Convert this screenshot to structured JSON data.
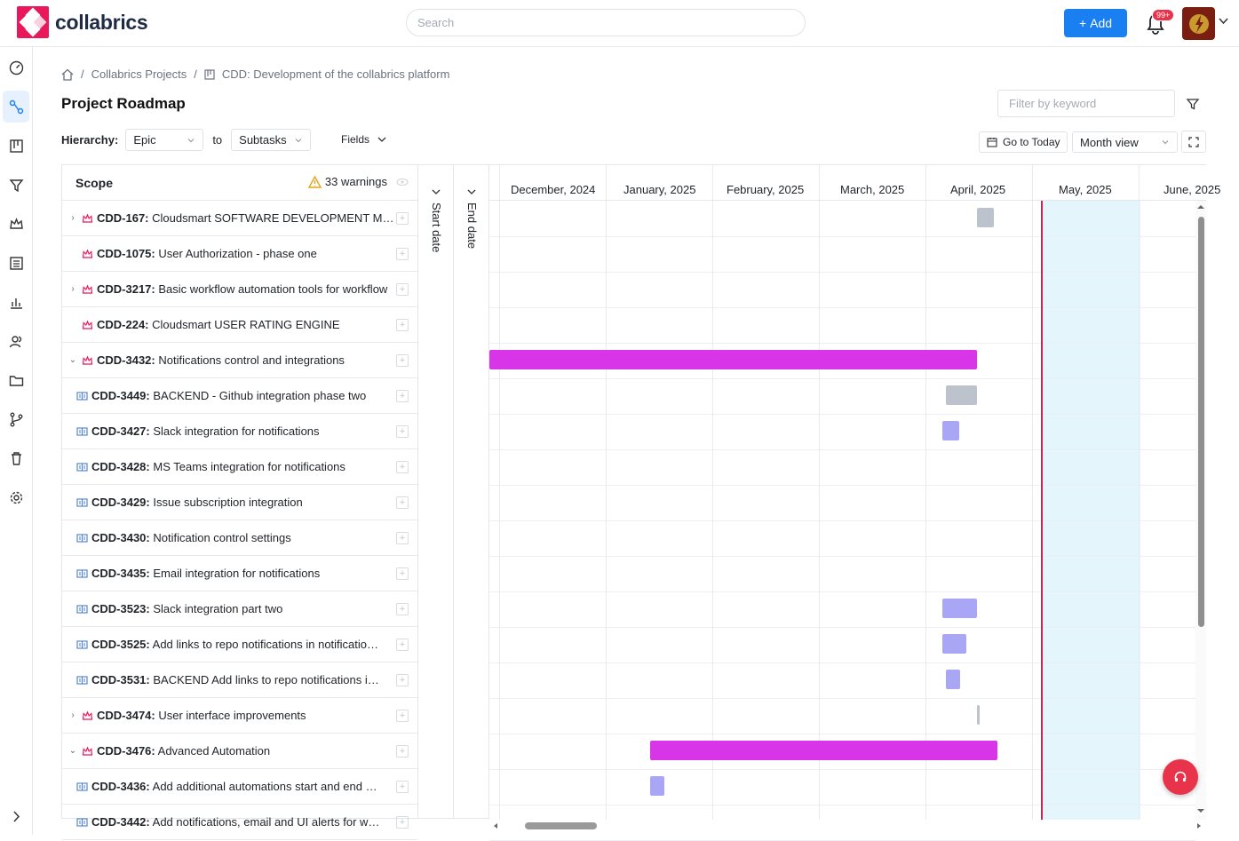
{
  "app": {
    "name": "collabrics"
  },
  "header": {
    "search_placeholder": "Search",
    "add_label": "Add",
    "notification_badge": "99+"
  },
  "breadcrumb": [
    "Collabrics Projects",
    "CDD: Development of the collabrics platform"
  ],
  "page_title": "Project Roadmap",
  "filter_placeholder": "Filter by keyword",
  "hierarchy": {
    "label": "Hierarchy:",
    "from": "Epic",
    "to_label": "to",
    "to": "Subtasks",
    "fields_label": "Fields"
  },
  "toolbar": {
    "today_label": "Go to Today",
    "view_label": "Month view"
  },
  "scope": {
    "header": "Scope",
    "warnings": "33 warnings",
    "rows": [
      {
        "key": "CDD-167:",
        "title": "Cloudsmart SOFTWARE DEVELOPMENT M…",
        "type": "epic",
        "expand": "›"
      },
      {
        "key": "CDD-1075:",
        "title": "User Authorization - phase one",
        "type": "epic",
        "expand": ""
      },
      {
        "key": "CDD-3217:",
        "title": "Basic workflow automation tools for workflow",
        "type": "epic",
        "expand": "›"
      },
      {
        "key": "CDD-224:",
        "title": "Cloudsmart USER RATING ENGINE",
        "type": "epic",
        "expand": ""
      },
      {
        "key": "CDD-3432:",
        "title": "Notifications control and integrations",
        "type": "epic",
        "expand": "⌄"
      },
      {
        "key": "CDD-3449:",
        "title": "BACKEND - Github integration phase two",
        "type": "story",
        "expand": ""
      },
      {
        "key": "CDD-3427:",
        "title": "Slack integration for notifications",
        "type": "story",
        "expand": ""
      },
      {
        "key": "CDD-3428:",
        "title": "MS Teams integration for notifications",
        "type": "story",
        "expand": ""
      },
      {
        "key": "CDD-3429:",
        "title": "Issue subscription integration",
        "type": "story",
        "expand": ""
      },
      {
        "key": "CDD-3430:",
        "title": "Notification control settings",
        "type": "story",
        "expand": ""
      },
      {
        "key": "CDD-3435:",
        "title": "Email integration for notifications",
        "type": "story",
        "expand": ""
      },
      {
        "key": "CDD-3523:",
        "title": "Slack integration part two",
        "type": "story",
        "expand": ""
      },
      {
        "key": "CDD-3525:",
        "title": "Add links to repo notifications in notificatio…",
        "type": "story",
        "expand": ""
      },
      {
        "key": "CDD-3531:",
        "title": "BACKEND Add links to repo notifications i…",
        "type": "story",
        "expand": ""
      },
      {
        "key": "CDD-3474:",
        "title": "User interface improvements",
        "type": "epic",
        "expand": "›"
      },
      {
        "key": "CDD-3476:",
        "title": "Advanced Automation",
        "type": "epic",
        "expand": "⌄"
      },
      {
        "key": "CDD-3436:",
        "title": "Add additional automations start and end …",
        "type": "story",
        "expand": ""
      },
      {
        "key": "CDD-3442:",
        "title": "Add notifications, email and UI alerts for w…",
        "type": "story",
        "expand": ""
      }
    ]
  },
  "date_columns": {
    "start": "Start date",
    "end": "End date"
  },
  "timeline": {
    "months": [
      "December, 2024",
      "January, 2025",
      "February, 2025",
      "March, 2025",
      "April, 2025",
      "May, 2025",
      "June, 2025"
    ]
  },
  "colors": {
    "accent": "#1a7ff0",
    "brand": "#e8185a",
    "epic_bar": "#d835e8",
    "story_bar": "#a9a6f5",
    "inactive_bar": "#bcc3cc",
    "today_line": "#d6214c"
  }
}
